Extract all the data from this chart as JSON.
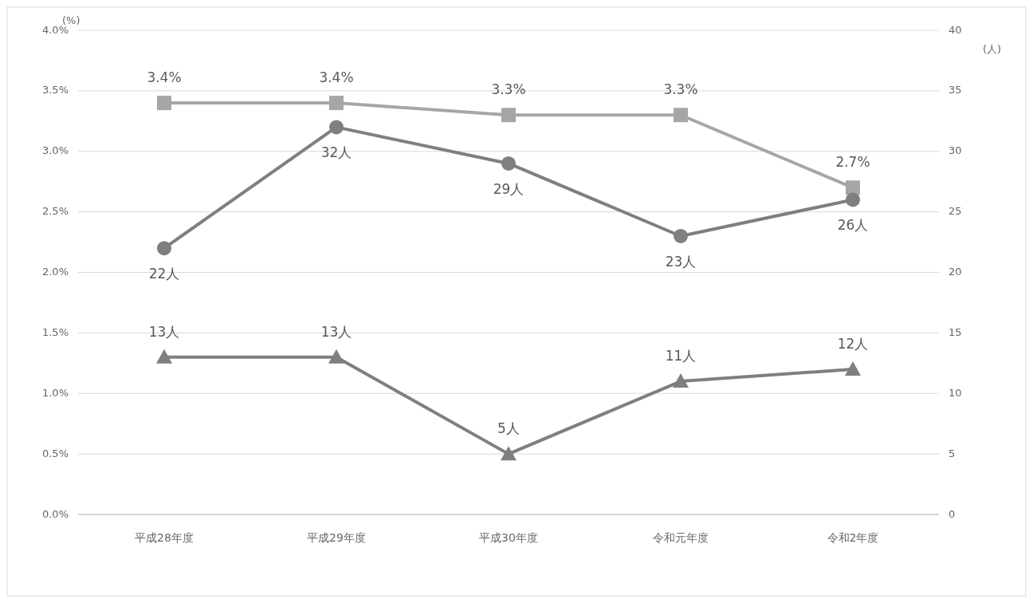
{
  "chart_data": {
    "type": "line",
    "ylabel": "(%)",
    "y2label": "(人)",
    "categories": [
      "平成28年度",
      "平成29年度",
      "平成30年度",
      "令和元年度",
      "令和2年度"
    ],
    "ylim": [
      0,
      4
    ],
    "yticks": [
      {
        "value": 0,
        "label": "0.0%"
      },
      {
        "value": 0.5,
        "label": "0.5%"
      },
      {
        "value": 1,
        "label": "1.0%"
      },
      {
        "value": 1.5,
        "label": "1.5%"
      },
      {
        "value": 2,
        "label": "2.0%"
      },
      {
        "value": 2.5,
        "label": "2.5%"
      },
      {
        "value": 3,
        "label": "3.0%"
      },
      {
        "value": 3.5,
        "label": "3.5%"
      },
      {
        "value": 4,
        "label": "4.0%"
      }
    ],
    "y2lim": [
      0,
      40
    ],
    "y2ticks": [
      0,
      5,
      10,
      15,
      20,
      25,
      30,
      35,
      40
    ],
    "grid": "y",
    "line_style": "solid",
    "series": [
      {
        "color": "#a6a6a6",
        "marker": "square",
        "values": [
          3.4,
          3.4,
          3.3,
          3.3,
          2.7
        ],
        "value_labels": [
          "3.4%",
          "3.4%",
          "3.3%",
          "3.3%",
          "2.7%"
        ]
      },
      {
        "color": "#7f7f7f",
        "marker": "circle",
        "axis": "y2",
        "values": [
          22,
          32,
          29,
          23,
          26
        ],
        "value_labels": [
          "22人",
          "32人",
          "29人",
          "23人",
          "26人"
        ]
      },
      {
        "color": "#7f7f7f",
        "marker": "triangle",
        "axis": "y2",
        "values": [
          13,
          13,
          5,
          11,
          12
        ],
        "value_labels": [
          "13人",
          "13人",
          "5人",
          "11人",
          "12人"
        ]
      }
    ]
  }
}
